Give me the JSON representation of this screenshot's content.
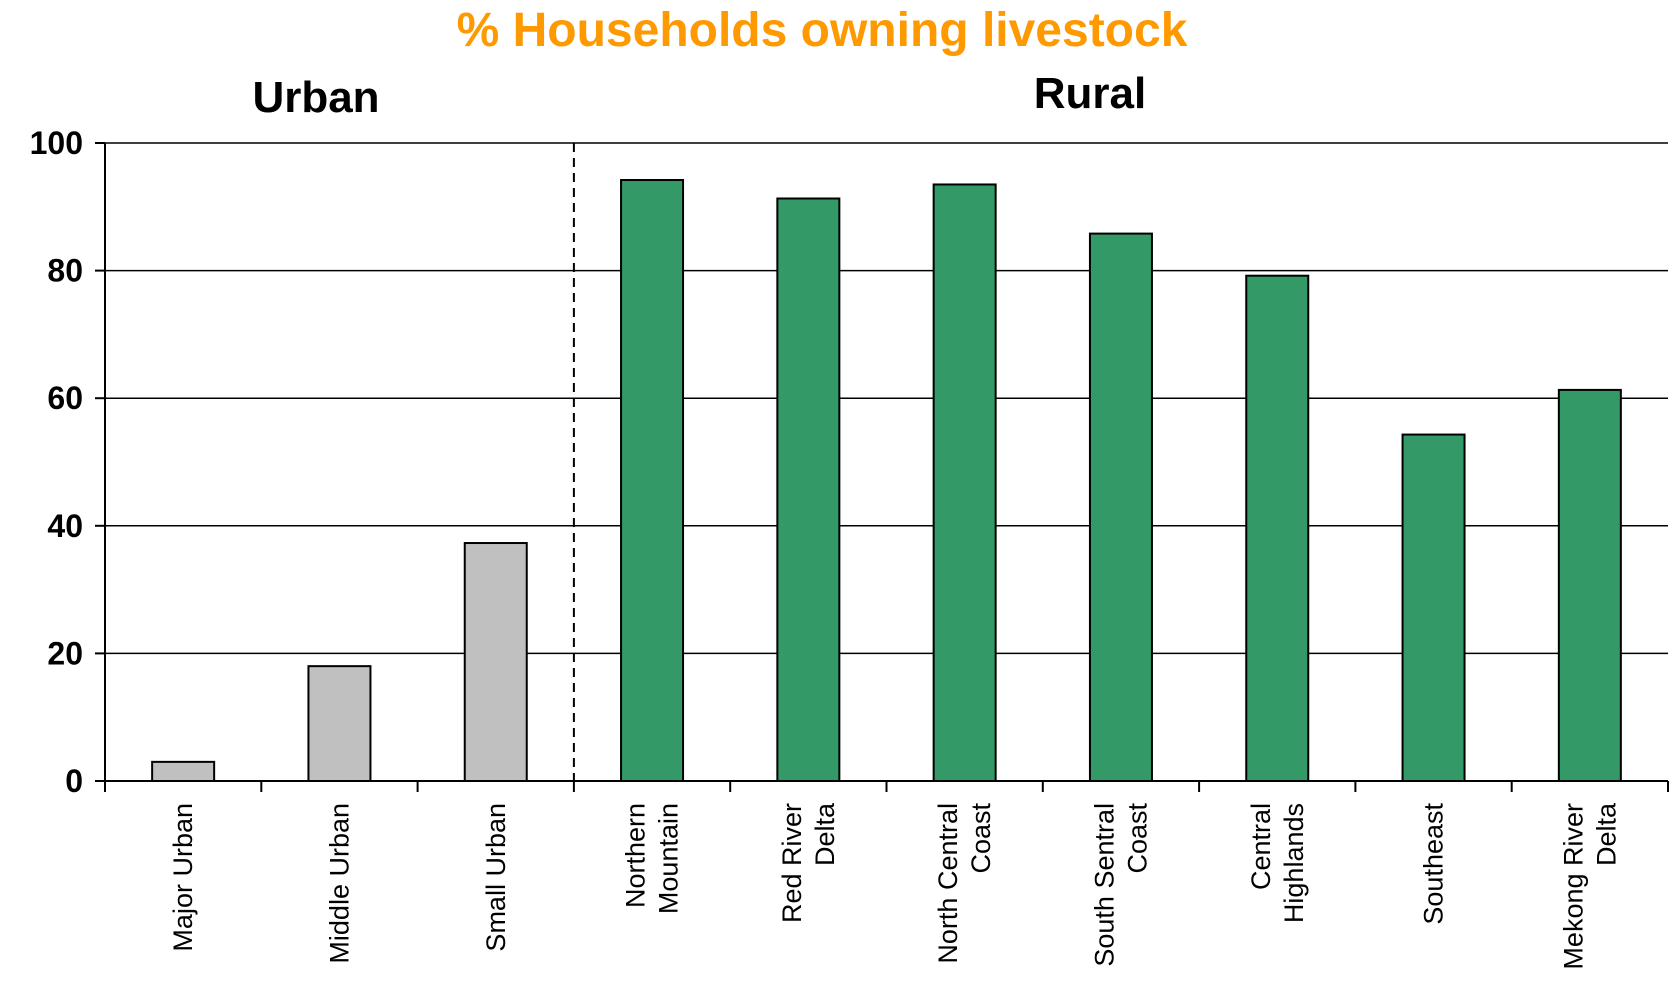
{
  "chart_data": {
    "type": "bar",
    "title": "% Households owning livestock",
    "title_color": "#FF9900",
    "xlabel": "",
    "ylabel": "",
    "ylim": [
      0,
      100
    ],
    "y_ticks": [
      0,
      20,
      40,
      60,
      80,
      100
    ],
    "grid": true,
    "groups": [
      {
        "label": "Urban",
        "color": "#C0C0C0",
        "category_count": 3
      },
      {
        "label": "Rural",
        "color": "#339966",
        "category_count": 7
      }
    ],
    "categories": [
      [
        "Major Urban"
      ],
      [
        "Middle Urban"
      ],
      [
        "Small Urban"
      ],
      [
        "Northern",
        "Mountain"
      ],
      [
        "Red River",
        "Delta"
      ],
      [
        "North Central",
        "Coast"
      ],
      [
        "South Sentral",
        "Coast"
      ],
      [
        "Central",
        "Highlands"
      ],
      [
        "Southeast"
      ],
      [
        "Mekong River",
        "Delta"
      ]
    ],
    "values": [
      3,
      18,
      37.3,
      94.2,
      91.3,
      93.5,
      85.8,
      79.2,
      54.3,
      61.3
    ]
  }
}
